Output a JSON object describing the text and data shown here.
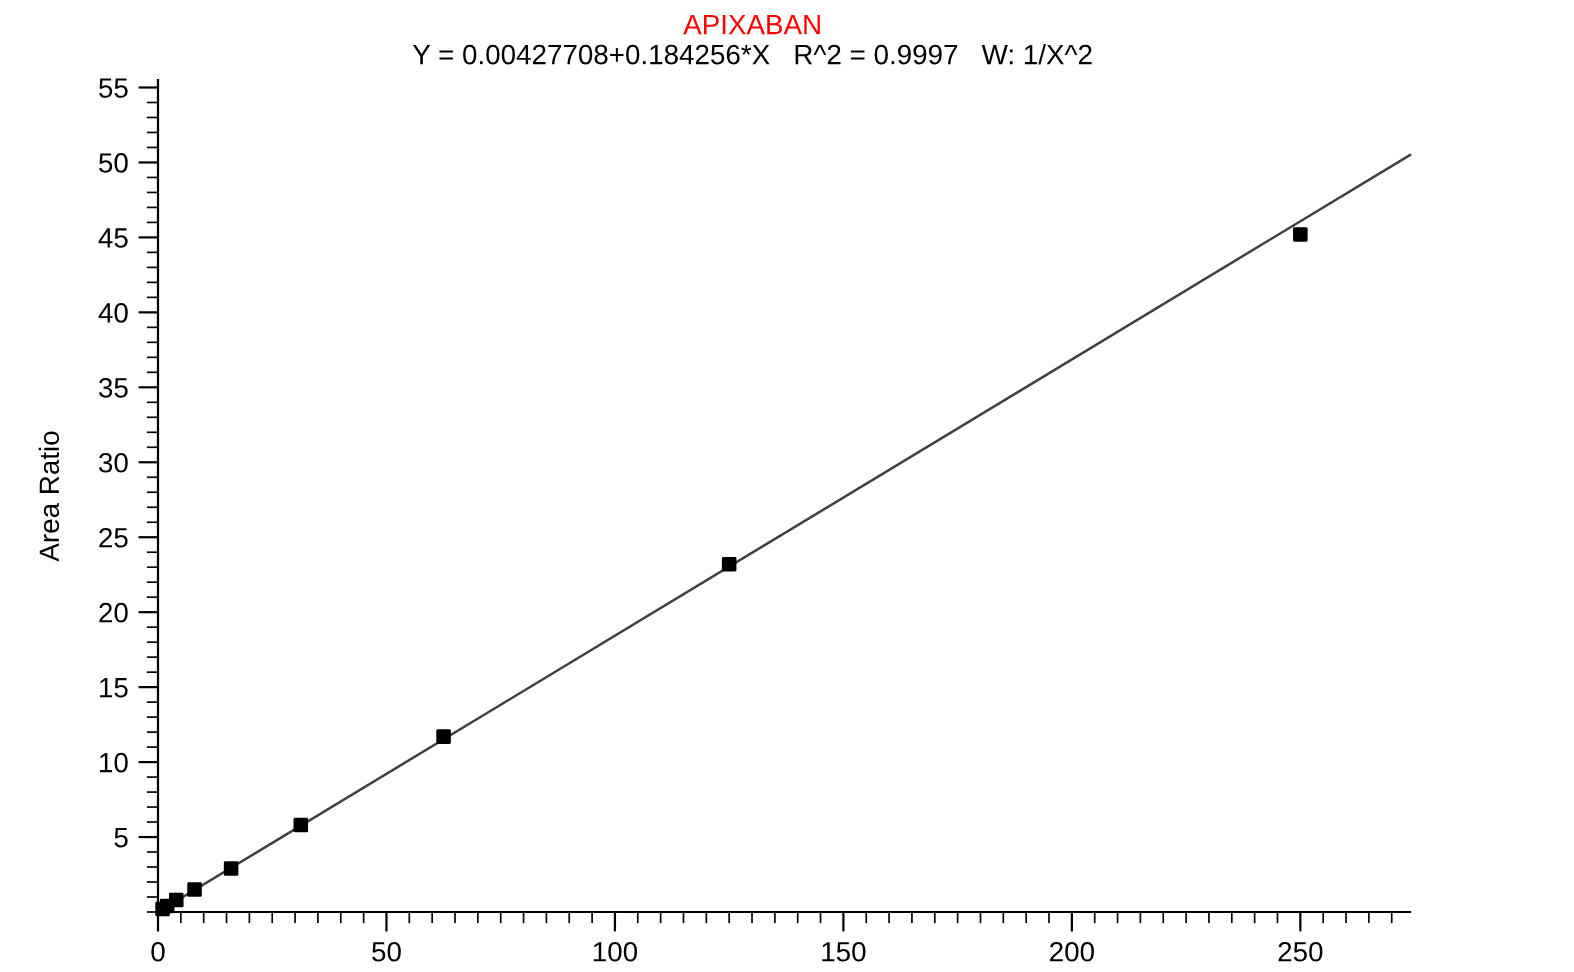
{
  "chart_data": {
    "type": "scatter",
    "title": "APIXABAN",
    "subtitle": "Y = 0.00427708+0.184256*X   R^2 = 0.9997   W: 1/X^2",
    "ylabel": "Area Ratio",
    "xlim": [
      0,
      274
    ],
    "ylim": [
      0,
      55.5
    ],
    "xticks": [
      0,
      50,
      100,
      150,
      200,
      250
    ],
    "yticks": [
      5,
      10,
      15,
      20,
      25,
      30,
      35,
      40,
      45,
      50,
      55
    ],
    "grid": false,
    "series": [
      {
        "color": "#000000",
        "marker": "square",
        "x": [
          1,
          2,
          4,
          8,
          16,
          31.25,
          62.5,
          125,
          250
        ],
        "values": [
          0.2,
          0.4,
          0.8,
          1.5,
          2.9,
          5.8,
          11.7,
          23.2,
          45.2
        ]
      },
      {
        "type": "line",
        "color": "#404040",
        "line_style": "solid",
        "x": [
          0,
          274
        ],
        "values": [
          0,
          50.5
        ]
      }
    ]
  }
}
